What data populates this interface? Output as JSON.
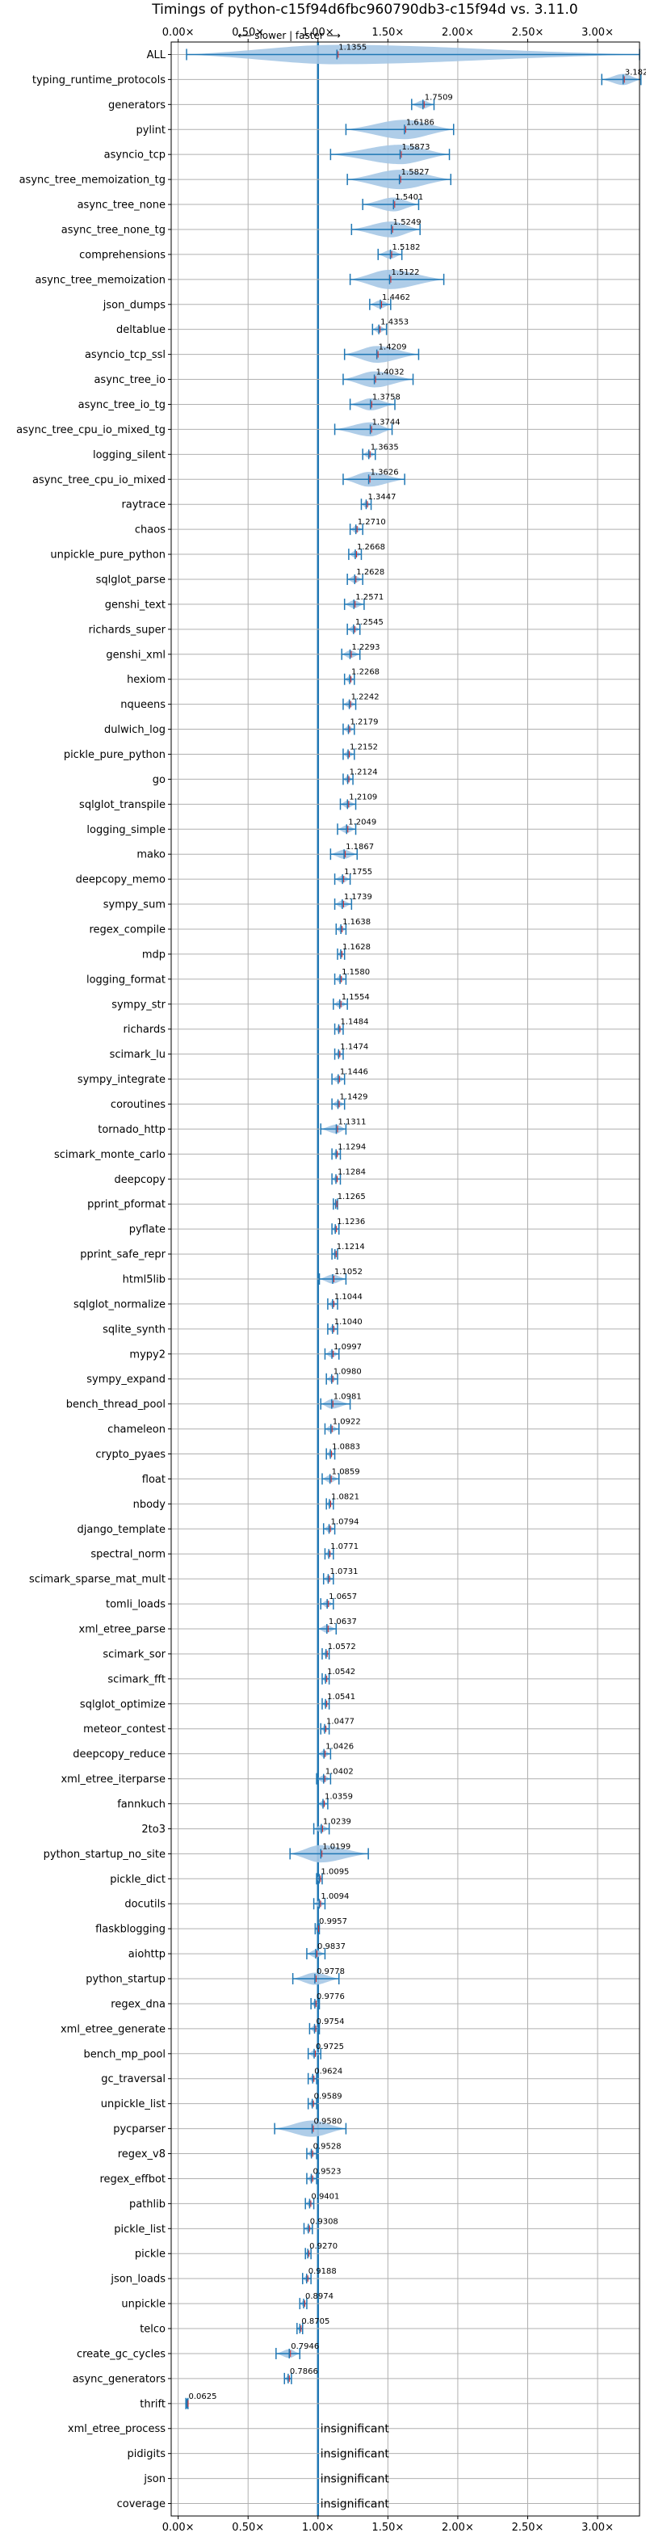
{
  "chart_data": {
    "type": "violin",
    "title": "Timings of python-c15f94d6fbc960790db3-c15f94d vs. 3.11.0",
    "direction_label": "⟵ slower | faster ⟶",
    "x_ticks": [
      "0.00×",
      "0.50×",
      "1.00×",
      "1.50×",
      "2.00×",
      "2.50×",
      "3.00×"
    ],
    "x_tick_values": [
      0,
      0.5,
      1,
      1.5,
      2,
      2.5,
      3
    ],
    "xlim": [
      -0.05,
      3.3
    ],
    "reference_line": 1.0,
    "grid": true,
    "insignificant_label": "insignificant",
    "colors": {
      "violin": "#a6c8e6",
      "line": "#1f77b4",
      "median": "#d62728",
      "grid": "#b0b0b0"
    },
    "benchmarks": [
      {
        "name": "ALL",
        "value": "1.1355",
        "mean": 1.1355,
        "min": 0.06,
        "max": 3.3
      },
      {
        "name": "typing_runtime_protocols",
        "value": "3.1828",
        "mean": 3.1828,
        "min": 3.03,
        "max": 3.31
      },
      {
        "name": "generators",
        "value": "1.7509",
        "mean": 1.7509,
        "min": 1.67,
        "max": 1.83
      },
      {
        "name": "pylint",
        "value": "1.6186",
        "mean": 1.6186,
        "min": 1.2,
        "max": 1.97
      },
      {
        "name": "asyncio_tcp",
        "value": "1.5873",
        "mean": 1.5873,
        "min": 1.09,
        "max": 1.94
      },
      {
        "name": "async_tree_memoization_tg",
        "value": "1.5827",
        "mean": 1.5827,
        "min": 1.21,
        "max": 1.95
      },
      {
        "name": "async_tree_none",
        "value": "1.5401",
        "mean": 1.5401,
        "min": 1.32,
        "max": 1.72
      },
      {
        "name": "async_tree_none_tg",
        "value": "1.5249",
        "mean": 1.5249,
        "min": 1.24,
        "max": 1.73
      },
      {
        "name": "comprehensions",
        "value": "1.5182",
        "mean": 1.5182,
        "min": 1.43,
        "max": 1.6
      },
      {
        "name": "async_tree_memoization",
        "value": "1.5122",
        "mean": 1.5122,
        "min": 1.23,
        "max": 1.9
      },
      {
        "name": "json_dumps",
        "value": "1.4462",
        "mean": 1.4462,
        "min": 1.37,
        "max": 1.52
      },
      {
        "name": "deltablue",
        "value": "1.4353",
        "mean": 1.4353,
        "min": 1.39,
        "max": 1.49
      },
      {
        "name": "asyncio_tcp_ssl",
        "value": "1.4209",
        "mean": 1.4209,
        "min": 1.19,
        "max": 1.72
      },
      {
        "name": "async_tree_io",
        "value": "1.4032",
        "mean": 1.4032,
        "min": 1.18,
        "max": 1.68
      },
      {
        "name": "async_tree_io_tg",
        "value": "1.3758",
        "mean": 1.3758,
        "min": 1.23,
        "max": 1.55
      },
      {
        "name": "async_tree_cpu_io_mixed_tg",
        "value": "1.3744",
        "mean": 1.3744,
        "min": 1.12,
        "max": 1.53
      },
      {
        "name": "logging_silent",
        "value": "1.3635",
        "mean": 1.3635,
        "min": 1.32,
        "max": 1.41
      },
      {
        "name": "async_tree_cpu_io_mixed",
        "value": "1.3626",
        "mean": 1.3626,
        "min": 1.18,
        "max": 1.62
      },
      {
        "name": "raytrace",
        "value": "1.3447",
        "mean": 1.3447,
        "min": 1.31,
        "max": 1.38
      },
      {
        "name": "chaos",
        "value": "1.2710",
        "mean": 1.271,
        "min": 1.23,
        "max": 1.32
      },
      {
        "name": "unpickle_pure_python",
        "value": "1.2668",
        "mean": 1.2668,
        "min": 1.22,
        "max": 1.31
      },
      {
        "name": "sqlglot_parse",
        "value": "1.2628",
        "mean": 1.2628,
        "min": 1.21,
        "max": 1.32
      },
      {
        "name": "genshi_text",
        "value": "1.2571",
        "mean": 1.2571,
        "min": 1.19,
        "max": 1.33
      },
      {
        "name": "richards_super",
        "value": "1.2545",
        "mean": 1.2545,
        "min": 1.21,
        "max": 1.3
      },
      {
        "name": "genshi_xml",
        "value": "1.2293",
        "mean": 1.2293,
        "min": 1.17,
        "max": 1.3
      },
      {
        "name": "hexiom",
        "value": "1.2268",
        "mean": 1.2268,
        "min": 1.19,
        "max": 1.26
      },
      {
        "name": "nqueens",
        "value": "1.2242",
        "mean": 1.2242,
        "min": 1.18,
        "max": 1.27
      },
      {
        "name": "dulwich_log",
        "value": "1.2179",
        "mean": 1.2179,
        "min": 1.18,
        "max": 1.26
      },
      {
        "name": "pickle_pure_python",
        "value": "1.2152",
        "mean": 1.2152,
        "min": 1.18,
        "max": 1.26
      },
      {
        "name": "go",
        "value": "1.2124",
        "mean": 1.2124,
        "min": 1.18,
        "max": 1.25
      },
      {
        "name": "sqlglot_transpile",
        "value": "1.2109",
        "mean": 1.2109,
        "min": 1.16,
        "max": 1.27
      },
      {
        "name": "logging_simple",
        "value": "1.2049",
        "mean": 1.2049,
        "min": 1.14,
        "max": 1.27
      },
      {
        "name": "mako",
        "value": "1.1867",
        "mean": 1.1867,
        "min": 1.09,
        "max": 1.28
      },
      {
        "name": "deepcopy_memo",
        "value": "1.1755",
        "mean": 1.1755,
        "min": 1.12,
        "max": 1.23
      },
      {
        "name": "sympy_sum",
        "value": "1.1739",
        "mean": 1.1739,
        "min": 1.12,
        "max": 1.24
      },
      {
        "name": "regex_compile",
        "value": "1.1638",
        "mean": 1.1638,
        "min": 1.13,
        "max": 1.2
      },
      {
        "name": "mdp",
        "value": "1.1628",
        "mean": 1.1628,
        "min": 1.14,
        "max": 1.19
      },
      {
        "name": "logging_format",
        "value": "1.1580",
        "mean": 1.158,
        "min": 1.12,
        "max": 1.2
      },
      {
        "name": "sympy_str",
        "value": "1.1554",
        "mean": 1.1554,
        "min": 1.11,
        "max": 1.21
      },
      {
        "name": "richards",
        "value": "1.1484",
        "mean": 1.1484,
        "min": 1.12,
        "max": 1.18
      },
      {
        "name": "scimark_lu",
        "value": "1.1474",
        "mean": 1.1474,
        "min": 1.12,
        "max": 1.18
      },
      {
        "name": "sympy_integrate",
        "value": "1.1446",
        "mean": 1.1446,
        "min": 1.1,
        "max": 1.19
      },
      {
        "name": "coroutines",
        "value": "1.1429",
        "mean": 1.1429,
        "min": 1.1,
        "max": 1.19
      },
      {
        "name": "tornado_http",
        "value": "1.1311",
        "mean": 1.1311,
        "min": 1.02,
        "max": 1.2
      },
      {
        "name": "scimark_monte_carlo",
        "value": "1.1294",
        "mean": 1.1294,
        "min": 1.1,
        "max": 1.16
      },
      {
        "name": "deepcopy",
        "value": "1.1284",
        "mean": 1.1284,
        "min": 1.1,
        "max": 1.16
      },
      {
        "name": "pprint_pformat",
        "value": "1.1265",
        "mean": 1.1265,
        "min": 1.11,
        "max": 1.14
      },
      {
        "name": "pyflate",
        "value": "1.1236",
        "mean": 1.1236,
        "min": 1.1,
        "max": 1.15
      },
      {
        "name": "pprint_safe_repr",
        "value": "1.1214",
        "mean": 1.1214,
        "min": 1.1,
        "max": 1.14
      },
      {
        "name": "html5lib",
        "value": "1.1052",
        "mean": 1.1052,
        "min": 1.01,
        "max": 1.2
      },
      {
        "name": "sqlglot_normalize",
        "value": "1.1044",
        "mean": 1.1044,
        "min": 1.07,
        "max": 1.14
      },
      {
        "name": "sqlite_synth",
        "value": "1.1040",
        "mean": 1.104,
        "min": 1.07,
        "max": 1.14
      },
      {
        "name": "mypy2",
        "value": "1.0997",
        "mean": 1.0997,
        "min": 1.05,
        "max": 1.15
      },
      {
        "name": "sympy_expand",
        "value": "1.0980",
        "mean": 1.098,
        "min": 1.06,
        "max": 1.14
      },
      {
        "name": "bench_thread_pool",
        "value": "1.0981",
        "mean": 1.0981,
        "min": 1.02,
        "max": 1.23
      },
      {
        "name": "chameleon",
        "value": "1.0922",
        "mean": 1.0922,
        "min": 1.05,
        "max": 1.15
      },
      {
        "name": "crypto_pyaes",
        "value": "1.0883",
        "mean": 1.0883,
        "min": 1.06,
        "max": 1.12
      },
      {
        "name": "float",
        "value": "1.0859",
        "mean": 1.0859,
        "min": 1.03,
        "max": 1.15
      },
      {
        "name": "nbody",
        "value": "1.0821",
        "mean": 1.0821,
        "min": 1.06,
        "max": 1.11
      },
      {
        "name": "django_template",
        "value": "1.0794",
        "mean": 1.0794,
        "min": 1.04,
        "max": 1.12
      },
      {
        "name": "spectral_norm",
        "value": "1.0771",
        "mean": 1.0771,
        "min": 1.05,
        "max": 1.11
      },
      {
        "name": "scimark_sparse_mat_mult",
        "value": "1.0731",
        "mean": 1.0731,
        "min": 1.04,
        "max": 1.11
      },
      {
        "name": "tomli_loads",
        "value": "1.0657",
        "mean": 1.0657,
        "min": 1.02,
        "max": 1.11
      },
      {
        "name": "xml_etree_parse",
        "value": "1.0637",
        "mean": 1.0637,
        "min": 1.0,
        "max": 1.13
      },
      {
        "name": "scimark_sor",
        "value": "1.0572",
        "mean": 1.0572,
        "min": 1.03,
        "max": 1.08
      },
      {
        "name": "scimark_fft",
        "value": "1.0542",
        "mean": 1.0542,
        "min": 1.03,
        "max": 1.08
      },
      {
        "name": "sqlglot_optimize",
        "value": "1.0541",
        "mean": 1.0541,
        "min": 1.03,
        "max": 1.08
      },
      {
        "name": "meteor_contest",
        "value": "1.0477",
        "mean": 1.0477,
        "min": 1.02,
        "max": 1.08
      },
      {
        "name": "deepcopy_reduce",
        "value": "1.0426",
        "mean": 1.0426,
        "min": 1.0,
        "max": 1.09
      },
      {
        "name": "xml_etree_iterparse",
        "value": "1.0402",
        "mean": 1.0402,
        "min": 0.99,
        "max": 1.09
      },
      {
        "name": "fannkuch",
        "value": "1.0359",
        "mean": 1.0359,
        "min": 1.0,
        "max": 1.07
      },
      {
        "name": "2to3",
        "value": "1.0239",
        "mean": 1.0239,
        "min": 0.97,
        "max": 1.08
      },
      {
        "name": "python_startup_no_site",
        "value": "1.0199",
        "mean": 1.0199,
        "min": 0.8,
        "max": 1.36
      },
      {
        "name": "pickle_dict",
        "value": "1.0095",
        "mean": 1.0095,
        "min": 0.99,
        "max": 1.03
      },
      {
        "name": "docutils",
        "value": "1.0094",
        "mean": 1.0094,
        "min": 0.97,
        "max": 1.05
      },
      {
        "name": "flaskblogging",
        "value": "0.9957",
        "mean": 0.9957,
        "min": 0.98,
        "max": 1.01
      },
      {
        "name": "aiohttp",
        "value": "0.9837",
        "mean": 0.9837,
        "min": 0.92,
        "max": 1.05
      },
      {
        "name": "python_startup",
        "value": "0.9778",
        "mean": 0.9778,
        "min": 0.82,
        "max": 1.15
      },
      {
        "name": "regex_dna",
        "value": "0.9776",
        "mean": 0.9776,
        "min": 0.95,
        "max": 1.01
      },
      {
        "name": "xml_etree_generate",
        "value": "0.9754",
        "mean": 0.9754,
        "min": 0.94,
        "max": 1.01
      },
      {
        "name": "bench_mp_pool",
        "value": "0.9725",
        "mean": 0.9725,
        "min": 0.93,
        "max": 1.02
      },
      {
        "name": "gc_traversal",
        "value": "0.9624",
        "mean": 0.9624,
        "min": 0.93,
        "max": 0.99
      },
      {
        "name": "unpickle_list",
        "value": "0.9589",
        "mean": 0.9589,
        "min": 0.93,
        "max": 0.99
      },
      {
        "name": "pycparser",
        "value": "0.9580",
        "mean": 0.958,
        "min": 0.69,
        "max": 1.2
      },
      {
        "name": "regex_v8",
        "value": "0.9528",
        "mean": 0.9528,
        "min": 0.92,
        "max": 0.99
      },
      {
        "name": "regex_effbot",
        "value": "0.9523",
        "mean": 0.9523,
        "min": 0.92,
        "max": 0.99
      },
      {
        "name": "pathlib",
        "value": "0.9401",
        "mean": 0.9401,
        "min": 0.91,
        "max": 0.97
      },
      {
        "name": "pickle_list",
        "value": "0.9308",
        "mean": 0.9308,
        "min": 0.9,
        "max": 0.96
      },
      {
        "name": "pickle",
        "value": "0.9270",
        "mean": 0.927,
        "min": 0.91,
        "max": 0.95
      },
      {
        "name": "json_loads",
        "value": "0.9188",
        "mean": 0.9188,
        "min": 0.89,
        "max": 0.95
      },
      {
        "name": "unpickle",
        "value": "0.8974",
        "mean": 0.8974,
        "min": 0.87,
        "max": 0.92
      },
      {
        "name": "telco",
        "value": "0.8705",
        "mean": 0.8705,
        "min": 0.85,
        "max": 0.89
      },
      {
        "name": "create_gc_cycles",
        "value": "0.7946",
        "mean": 0.7946,
        "min": 0.7,
        "max": 0.87
      },
      {
        "name": "async_generators",
        "value": "0.7866",
        "mean": 0.7866,
        "min": 0.76,
        "max": 0.81
      },
      {
        "name": "thrift",
        "value": "0.0625",
        "mean": 0.0625,
        "min": 0.055,
        "max": 0.07
      },
      {
        "name": "xml_etree_process",
        "value": "",
        "insignificant": true
      },
      {
        "name": "pidigits",
        "value": "",
        "insignificant": true
      },
      {
        "name": "json",
        "value": "",
        "insignificant": true
      },
      {
        "name": "coverage",
        "value": "",
        "insignificant": true
      }
    ]
  }
}
